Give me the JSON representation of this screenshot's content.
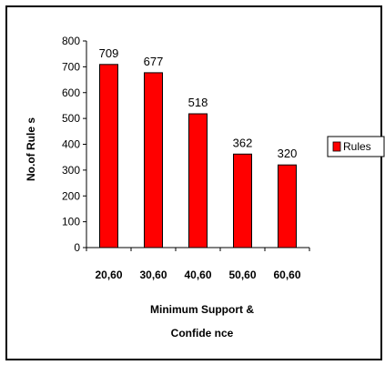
{
  "chart_data": {
    "type": "bar",
    "categories": [
      "20,60",
      "30,60",
      "40,60",
      "50,60",
      "60,60"
    ],
    "series": [
      {
        "name": "Rules",
        "values": [
          709,
          677,
          518,
          362,
          320
        ],
        "color": "#ff0000"
      }
    ],
    "data_labels": [
      "709",
      "677",
      "518",
      "362",
      "320"
    ],
    "title": "",
    "xlabel_lines": [
      "Minimum Support &",
      "Confide nce"
    ],
    "ylabel": "No.of Rule s",
    "ylim": [
      0,
      800
    ],
    "yticks": [
      0,
      100,
      200,
      300,
      400,
      500,
      600,
      700,
      800
    ],
    "grid": false,
    "legend": {
      "placement": "right",
      "label": "Rules"
    }
  }
}
